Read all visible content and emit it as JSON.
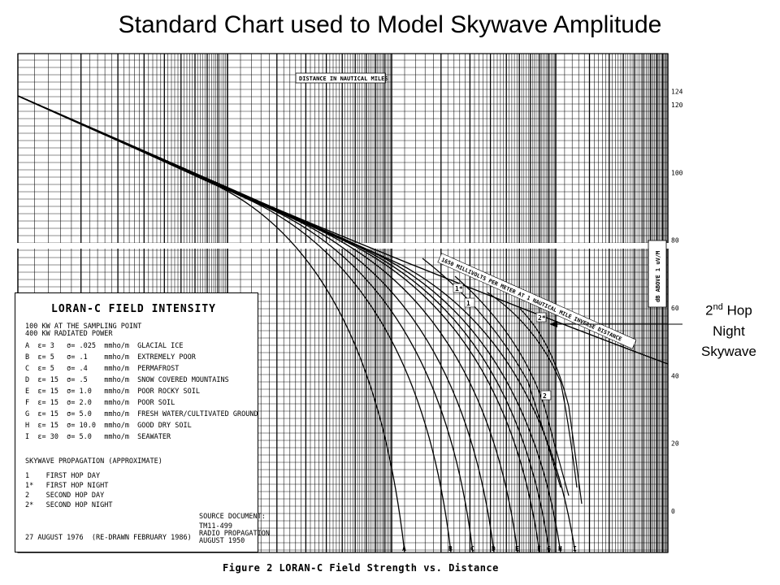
{
  "title": "Standard Chart used to Model Skywave Amplitude",
  "annotation": {
    "ordinal_num": "2",
    "ordinal_suffix": "nd",
    "line1_rest": " Hop",
    "line2": "Night",
    "line3": "Skywave"
  },
  "caption": "Figure 2  LORAN-C Field Strength vs. Distance",
  "chart_data": {
    "type": "line",
    "top_axis_label": "DISTANCE IN NAUTICAL MILES",
    "right_axis_label": "dB ABOVE 1 uV/M",
    "right_axis_ticks": [
      "124",
      "120",
      "100",
      "80",
      "60",
      "40",
      "20",
      "0"
    ],
    "x_scale": "log",
    "inverse_distance_label": "1650 MILLIVOLTS PER METER AT 1 NAUTICAL MILE INVERSE DISTANCE",
    "groundwave_curve_labels": [
      "A",
      "B",
      "C",
      "D",
      "E",
      "F",
      "G",
      "H",
      "I"
    ],
    "skywave_curve_labels": [
      "1*",
      "1",
      "2*",
      "2"
    ],
    "legend": {
      "title": "LORAN-C FIELD INTENSITY",
      "header1": "100 KW AT THE SAMPLING POINT",
      "header2": "400 KW RADIATED POWER",
      "rows": [
        "A  ε= 3   σ= .025  mmho/m  GLACIAL ICE",
        "B  ε= 5   σ= .1    mmho/m  EXTREMELY POOR",
        "C  ε= 5   σ= .4    mmho/m  PERMAFROST",
        "D  ε= 15  σ= .5    mmho/m  SNOW COVERED MOUNTAINS",
        "E  ε= 15  σ= 1.0   mmho/m  POOR ROCKY SOIL",
        "F  ε= 15  σ= 2.0   mmho/m  POOR SOIL",
        "G  ε= 15  σ= 5.0   mmho/m  FRESH WATER/CULTIVATED GROUND",
        "H  ε= 15  σ= 10.0  mmho/m  GOOD DRY SOIL",
        "I  ε= 30  σ= 5.0   mmho/m  SEAWATER"
      ],
      "skywave_title": "SKYWAVE PROPAGATION (APPROXIMATE)",
      "skywave_rows": [
        "1    FIRST HOP DAY",
        "1*   FIRST HOP NIGHT",
        "2    SECOND HOP DAY",
        "2*   SECOND HOP NIGHT"
      ],
      "source_title": "SOURCE DOCUMENT:",
      "source_lines": [
        "TM11-499",
        "RADIO PROPAGATION",
        "AUGUST 1950"
      ],
      "date_line": "27 AUGUST 1976  (RE-DRAWN FEBRUARY 1986)"
    }
  }
}
